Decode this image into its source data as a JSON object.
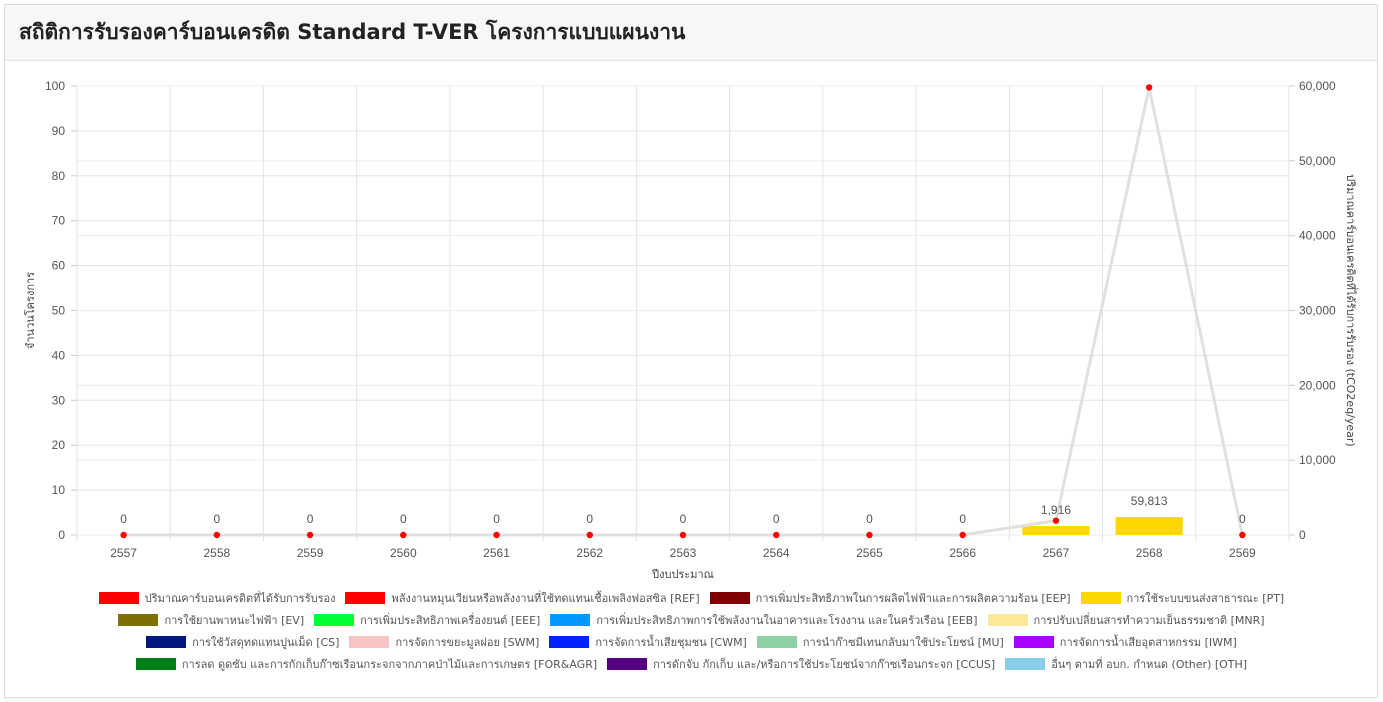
{
  "header": {
    "title": "สถิติการรับรองคาร์บอนเครดิต Standard T-VER โครงการแบบแผนงาน"
  },
  "chart_data": {
    "type": "bar",
    "categories": [
      "2557",
      "2558",
      "2559",
      "2560",
      "2561",
      "2562",
      "2563",
      "2564",
      "2565",
      "2566",
      "2567",
      "2568",
      "2569"
    ],
    "xlabel": "ปีงบประมาณ",
    "ylabel": "จำนวนโครงการ",
    "y2label": "ปริมาณคาร์บอนเครดิตที่ได้รับการรับรอง (tCO2eq/year)",
    "ylim": [
      0,
      100
    ],
    "y2lim": [
      0,
      60000
    ],
    "yticks": [
      "0",
      "10",
      "20",
      "30",
      "40",
      "50",
      "60",
      "70",
      "80",
      "90",
      "100"
    ],
    "y2ticks": [
      "0",
      "10,000",
      "20,000",
      "30,000",
      "40,000",
      "50,000",
      "60,000"
    ],
    "grid": true,
    "legend_position": "bottom",
    "series": [
      {
        "name": "ปริมาณคาร์บอนเครดิตที่ได้รับการรับรอง",
        "type": "line",
        "axis": "right",
        "color": "#ff0000",
        "line_color": "#e0e0e0",
        "values": [
          0,
          0,
          0,
          0,
          0,
          0,
          0,
          0,
          0,
          0,
          1916,
          59813,
          0
        ],
        "labels": [
          "0",
          "0",
          "0",
          "0",
          "0",
          "0",
          "0",
          "0",
          "0",
          "0",
          "1,916",
          "59,813",
          "0"
        ]
      },
      {
        "name": "พลังงานหมุนเวียนหรือพลังงานที่ใช้ทดแทนเชื้อเพลิงฟอสซิล [REF]",
        "type": "bar",
        "color": "#ff0000",
        "values": [
          0,
          0,
          0,
          0,
          0,
          0,
          0,
          0,
          0,
          0,
          0,
          0,
          0
        ]
      },
      {
        "name": "การเพิ่มประสิทธิภาพในการผลิตไฟฟ้าและการผลิตความร้อน [EEP]",
        "type": "bar",
        "color": "#7f0000",
        "values": [
          0,
          0,
          0,
          0,
          0,
          0,
          0,
          0,
          0,
          0,
          0,
          0,
          0
        ]
      },
      {
        "name": "การใช้ระบบขนส่งสาธารณะ [PT]",
        "type": "bar",
        "color": "#ffd700",
        "values": [
          0,
          0,
          0,
          0,
          0,
          0,
          0,
          0,
          0,
          0,
          2,
          4,
          0
        ]
      },
      {
        "name": "การใช้ยานพาหนะไฟฟ้า [EV]",
        "type": "bar",
        "color": "#7f6f00",
        "values": [
          0,
          0,
          0,
          0,
          0,
          0,
          0,
          0,
          0,
          0,
          0,
          0,
          0
        ]
      },
      {
        "name": "การเพิ่มประสิทธิภาพเครื่องยนต์ [EEE]",
        "type": "bar",
        "color": "#00ff33",
        "values": [
          0,
          0,
          0,
          0,
          0,
          0,
          0,
          0,
          0,
          0,
          0,
          0,
          0
        ]
      },
      {
        "name": "การเพิ่มประสิทธิภาพการใช้พลังงานในอาคารและโรงงาน และในครัวเรือน [EEB]",
        "type": "bar",
        "color": "#0099ff",
        "values": [
          0,
          0,
          0,
          0,
          0,
          0,
          0,
          0,
          0,
          0,
          0,
          0,
          0
        ]
      },
      {
        "name": "การปรับเปลี่ยนสารทำความเย็นธรรมชาติ [MNR]",
        "type": "bar",
        "color": "#ffe999",
        "values": [
          0,
          0,
          0,
          0,
          0,
          0,
          0,
          0,
          0,
          0,
          0,
          0,
          0
        ]
      },
      {
        "name": "การใช้วัสดุทดแทนปูนเม็ด [CS]",
        "type": "bar",
        "color": "#00177f",
        "values": [
          0,
          0,
          0,
          0,
          0,
          0,
          0,
          0,
          0,
          0,
          0,
          0,
          0
        ]
      },
      {
        "name": "การจัดการขยะมูลฝอย [SWM]",
        "type": "bar",
        "color": "#f6c4c4",
        "values": [
          0,
          0,
          0,
          0,
          0,
          0,
          0,
          0,
          0,
          0,
          0,
          0,
          0
        ]
      },
      {
        "name": "การจัดการน้ำเสียชุมชน [CWM]",
        "type": "bar",
        "color": "#0022ff",
        "values": [
          0,
          0,
          0,
          0,
          0,
          0,
          0,
          0,
          0,
          0,
          0,
          0,
          0
        ]
      },
      {
        "name": "การนำก๊าซมีเทนกลับมาใช้ประโยชน์ [MU]",
        "type": "bar",
        "color": "#8fd1a5",
        "values": [
          0,
          0,
          0,
          0,
          0,
          0,
          0,
          0,
          0,
          0,
          0,
          0,
          0
        ]
      },
      {
        "name": "การจัดการน้ำเสียอุตสาหกรรม [IWM]",
        "type": "bar",
        "color": "#aa00ff",
        "values": [
          0,
          0,
          0,
          0,
          0,
          0,
          0,
          0,
          0,
          0,
          0,
          0,
          0
        ]
      },
      {
        "name": "การลด ดูดซับ และการกักเก็บก๊าซเรือนกระจกจากภาคป่าไม้และการเกษตร [FOR&AGR]",
        "type": "bar",
        "color": "#007f18",
        "values": [
          0,
          0,
          0,
          0,
          0,
          0,
          0,
          0,
          0,
          0,
          0,
          0,
          0
        ]
      },
      {
        "name": "การดักจับ กักเก็บ และ/หรือการใช้ประโยชน์จากก๊าซเรือนกระจก [CCUS]",
        "type": "bar",
        "color": "#550080",
        "values": [
          0,
          0,
          0,
          0,
          0,
          0,
          0,
          0,
          0,
          0,
          0,
          0,
          0
        ]
      },
      {
        "name": "อื่นๆ ตามที่ อบก. กำหนด (Other) [OTH]",
        "type": "bar",
        "color": "#87ceeb",
        "values": [
          0,
          0,
          0,
          0,
          0,
          0,
          0,
          0,
          0,
          0,
          0,
          0,
          0
        ]
      }
    ]
  }
}
